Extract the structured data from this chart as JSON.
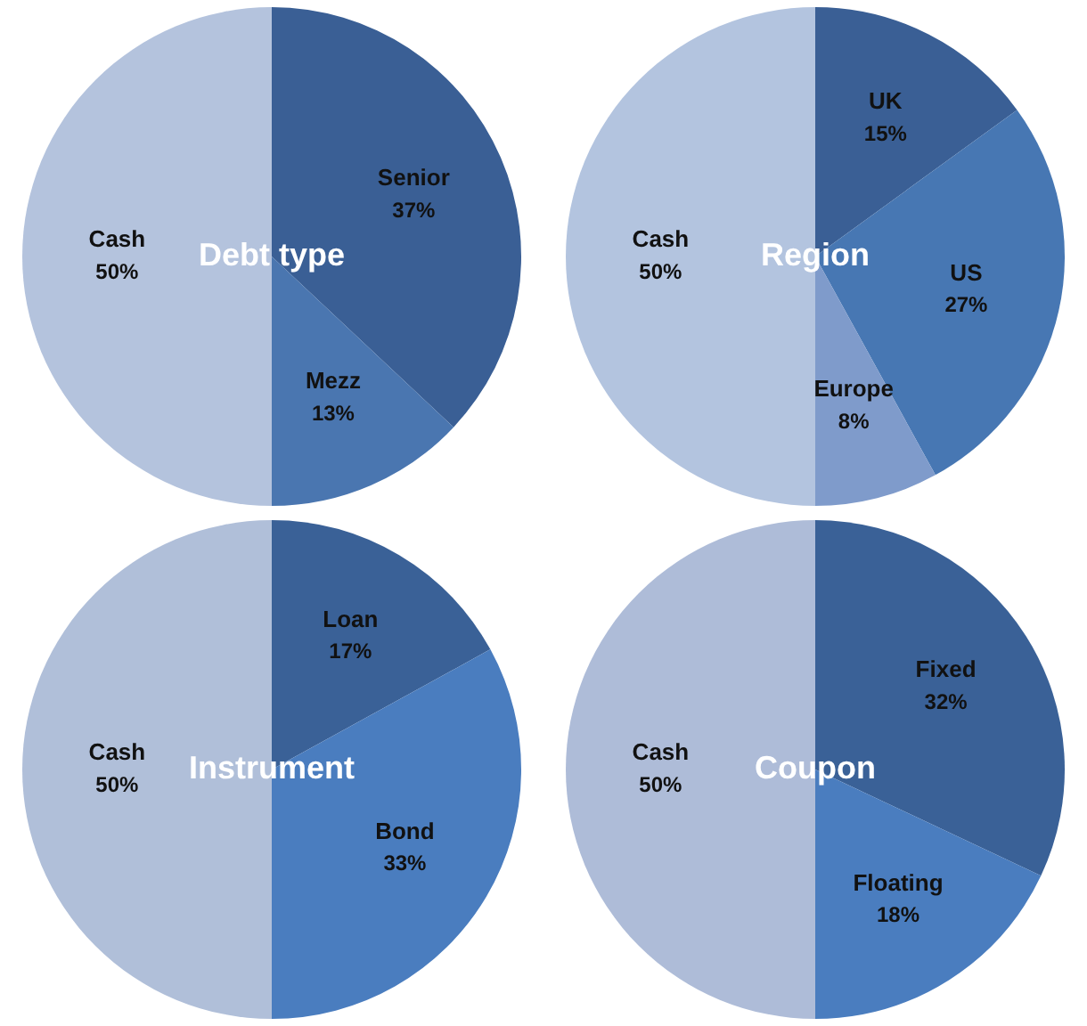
{
  "chart_data": [
    {
      "type": "pie",
      "title": "Debt type",
      "categories": [
        "Senior",
        "Mezz",
        "Cash"
      ],
      "values": [
        37,
        13,
        50
      ],
      "value_labels": [
        "37%",
        "13%",
        "50%"
      ],
      "colors": [
        "#3a5f95",
        "#4a76b0",
        "#b4c3dd"
      ]
    },
    {
      "type": "pie",
      "title": "Region",
      "categories": [
        "UK",
        "US",
        "Europe",
        "Cash"
      ],
      "values": [
        15,
        27,
        8,
        50
      ],
      "value_labels": [
        "15%",
        "27%",
        "8%",
        "50%"
      ],
      "colors": [
        "#3a5f95",
        "#4777b3",
        "#7f9bcb",
        "#b3c4df"
      ]
    },
    {
      "type": "pie",
      "title": "Instrument",
      "categories": [
        "Loan",
        "Bond",
        "Cash"
      ],
      "values": [
        17,
        33,
        50
      ],
      "value_labels": [
        "17%",
        "33%",
        "50%"
      ],
      "colors": [
        "#3a6197",
        "#4a7dbf",
        "#b0bfd9"
      ]
    },
    {
      "type": "pie",
      "title": "Coupon",
      "categories": [
        "Fixed",
        "Floating",
        "Cash"
      ],
      "values": [
        32,
        18,
        50
      ],
      "value_labels": [
        "32%",
        "18%",
        "50%"
      ],
      "colors": [
        "#3a6197",
        "#4a7dbf",
        "#aebcd8"
      ]
    }
  ]
}
